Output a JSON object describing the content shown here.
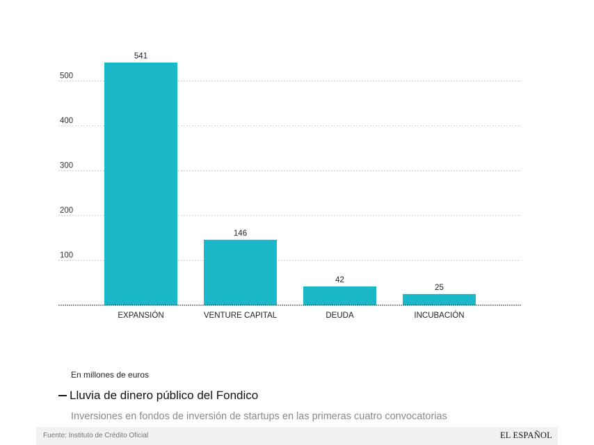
{
  "chart_data": {
    "type": "bar",
    "categories": [
      "EXPANSIÓN",
      "VENTURE CAPITAL",
      "DEUDA",
      "INCUBACIÓN"
    ],
    "values": [
      541,
      146,
      42,
      25
    ],
    "data_labels": [
      "541",
      "146",
      "42",
      "25"
    ],
    "yticks": [
      100,
      200,
      300,
      400,
      500
    ],
    "ylim": [
      0,
      541
    ],
    "grid": true,
    "bar_color": "#1ab8c9",
    "title": "Lluvia de dinero público del Fondico",
    "subtitle": "Inversiones en fondos de inversión de startups en las primeras cuatro convocatorias",
    "units": "En millones de euros"
  },
  "footer": {
    "source": "Fuente: Instituto de Crédito Oficial",
    "brand": "EL ESPAÑOL"
  }
}
